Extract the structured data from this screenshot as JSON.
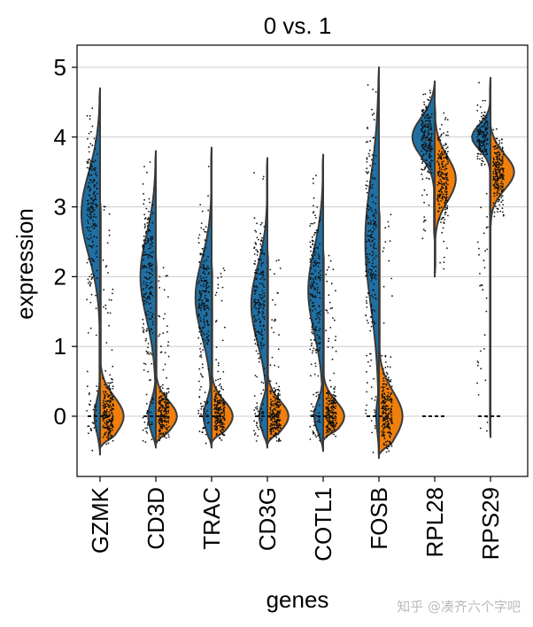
{
  "chart_data": {
    "type": "split-violin",
    "title": "0 vs. 1",
    "xlabel": "genes",
    "ylabel": "expression",
    "ylim": [
      -0.85,
      5.3
    ],
    "yticks": [
      0,
      1,
      2,
      3,
      4,
      5
    ],
    "grid": "horizontal",
    "series": [
      {
        "name": "0",
        "color": "#1f6fa3"
      },
      {
        "name": "1",
        "color": "#f07f0c"
      }
    ],
    "categories": [
      "GZMK",
      "CD3D",
      "TRAC",
      "CD3G",
      "COTL1",
      "FOSB",
      "RPL28",
      "RPS29"
    ],
    "violins": [
      {
        "gene": "GZMK",
        "left": {
          "ymin": -0.55,
          "ymax": 4.7,
          "mode": 2.9,
          "sd": 0.6,
          "w": 0.75,
          "zero": 0.3
        },
        "right": {
          "ymin": -0.45,
          "ymax": 3.1,
          "mode": 0.0,
          "sd": 0.28,
          "w": 0.95,
          "zero": 0.9
        }
      },
      {
        "gene": "CD3D",
        "left": {
          "ymin": -0.45,
          "ymax": 3.8,
          "mode": 2.0,
          "sd": 0.6,
          "w": 0.62,
          "zero": 0.5
        },
        "right": {
          "ymin": -0.4,
          "ymax": 2.3,
          "mode": 0.0,
          "sd": 0.22,
          "w": 0.85,
          "zero": 0.9
        }
      },
      {
        "gene": "TRAC",
        "left": {
          "ymin": -0.45,
          "ymax": 3.85,
          "mode": 1.7,
          "sd": 0.55,
          "w": 0.65,
          "zero": 0.5
        },
        "right": {
          "ymin": -0.38,
          "ymax": 2.2,
          "mode": 0.0,
          "sd": 0.22,
          "w": 0.85,
          "zero": 0.9
        }
      },
      {
        "gene": "CD3G",
        "left": {
          "ymin": -0.45,
          "ymax": 3.7,
          "mode": 1.6,
          "sd": 0.55,
          "w": 0.65,
          "zero": 0.5
        },
        "right": {
          "ymin": -0.4,
          "ymax": 2.4,
          "mode": 0.0,
          "sd": 0.22,
          "w": 0.85,
          "zero": 0.9
        }
      },
      {
        "gene": "COTL1",
        "left": {
          "ymin": -0.5,
          "ymax": 3.75,
          "mode": 1.8,
          "sd": 0.6,
          "w": 0.6,
          "zero": 0.6
        },
        "right": {
          "ymin": -0.35,
          "ymax": 2.4,
          "mode": 0.0,
          "sd": 0.22,
          "w": 0.85,
          "zero": 0.9
        }
      },
      {
        "gene": "FOSB",
        "left": {
          "ymin": -0.6,
          "ymax": 5.0,
          "mode": 2.5,
          "sd": 0.9,
          "w": 0.55,
          "zero": 0.2
        },
        "right": {
          "ymin": -0.55,
          "ymax": 3.0,
          "mode": 0.0,
          "sd": 0.35,
          "w": 0.95,
          "zero": 0.9
        }
      },
      {
        "gene": "RPL28",
        "left": {
          "ymin": 2.5,
          "ymax": 4.8,
          "mode": 4.0,
          "sd": 0.28,
          "w": 0.9,
          "zero": 0
        },
        "right": {
          "ymin": 2.0,
          "ymax": 4.5,
          "mode": 3.4,
          "sd": 0.32,
          "w": 0.85,
          "zero": 0
        }
      },
      {
        "gene": "RPS29",
        "left": {
          "ymin": -0.3,
          "ymax": 4.85,
          "mode": 4.0,
          "sd": 0.18,
          "w": 0.75,
          "zero": 0
        },
        "right": {
          "ymin": 2.7,
          "ymax": 4.2,
          "mode": 3.5,
          "sd": 0.25,
          "w": 0.95,
          "zero": 0
        }
      }
    ]
  },
  "watermark": "知乎 @凑齐六个字吧"
}
